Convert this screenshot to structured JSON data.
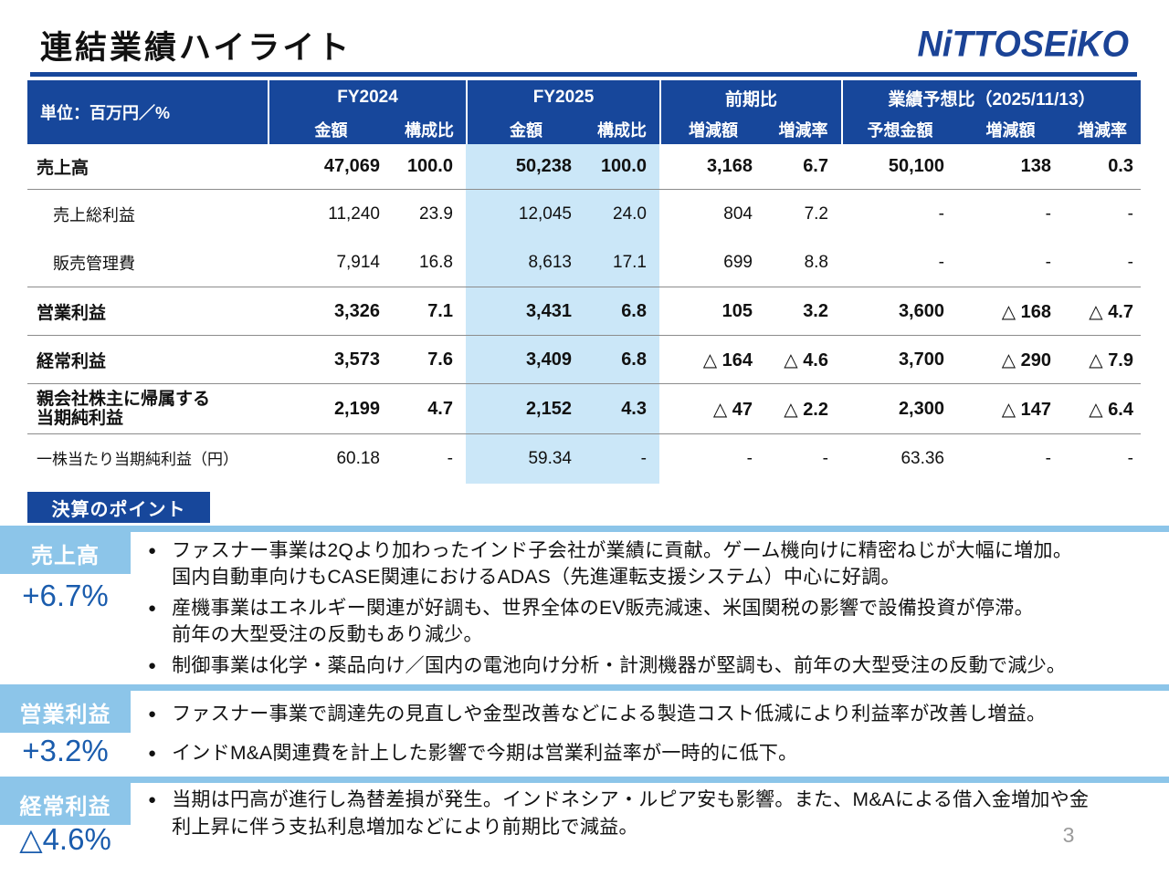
{
  "page": {
    "title": "連結業績ハイライト",
    "logo": "NiTTOSEiKO",
    "page_number": "3"
  },
  "colors": {
    "dark_blue": "#17479B",
    "logo_blue": "#1B4396",
    "light_blue": "#8CC5E9",
    "highlight_blue": "#CBE7F8",
    "percent_blue": "#1A5CAD"
  },
  "table": {
    "unit_label": "単位：百万円／%",
    "col_groups": [
      {
        "label": "FY2024",
        "subs": [
          "金額",
          "構成比"
        ]
      },
      {
        "label": "FY2025",
        "subs": [
          "金額",
          "構成比"
        ]
      },
      {
        "label": "前期比",
        "subs": [
          "増減額",
          "増減率"
        ]
      },
      {
        "label": "業績予想比（2025/11/13）",
        "subs": [
          "予想金額",
          "増減額",
          "増減率"
        ]
      }
    ],
    "rows": [
      {
        "label": "売上高",
        "values": [
          "47,069",
          "100.0",
          "50,238",
          "100.0",
          "3,168",
          "6.7",
          "50,100",
          "138",
          "0.3"
        ]
      },
      {
        "label": "売上総利益",
        "values": [
          "11,240",
          "23.9",
          "12,045",
          "24.0",
          "804",
          "7.2",
          "-",
          "-",
          "-"
        ]
      },
      {
        "label": "販売管理費",
        "values": [
          "7,914",
          "16.8",
          "8,613",
          "17.1",
          "699",
          "8.8",
          "-",
          "-",
          "-"
        ]
      },
      {
        "label": "営業利益",
        "values": [
          "3,326",
          "7.1",
          "3,431",
          "6.8",
          "105",
          "3.2",
          "3,600",
          "△ 168",
          "△ 4.7"
        ]
      },
      {
        "label": "経常利益",
        "values": [
          "3,573",
          "7.6",
          "3,409",
          "6.8",
          "△ 164",
          "△ 4.6",
          "3,700",
          "△ 290",
          "△ 7.9"
        ]
      },
      {
        "label": "親会社株主に帰属する\n当期純利益",
        "values": [
          "2,199",
          "4.7",
          "2,152",
          "4.3",
          "△ 47",
          "△ 2.2",
          "2,300",
          "△ 147",
          "△ 6.4"
        ]
      },
      {
        "label": "一株当たり当期純利益（円）",
        "values": [
          "60.18",
          "-",
          "59.34",
          "-",
          "-",
          "-",
          "63.36",
          "-",
          "-"
        ]
      }
    ]
  },
  "points": {
    "heading": "決算のポイント",
    "sections": [
      {
        "label": "売上高",
        "change": "+6.7%",
        "bullets": [
          "ファスナー事業は2Qより加わったインド子会社が業績に貢献。ゲーム機向けに精密ねじが大幅に増加。\n国内自動車向けもCASE関連におけるADAS（先進運転支援システム）中心に好調。",
          "産機事業はエネルギー関連が好調も、世界全体のEV販売減速、米国関税の影響で設備投資が停滞。\n前年の大型受注の反動もあり減少。",
          "制御事業は化学・薬品向け／国内の電池向け分析・計測機器が堅調も、前年の大型受注の反動で減少。"
        ]
      },
      {
        "label": "営業利益",
        "change": "+3.2%",
        "bullets": [
          "ファスナー事業で調達先の見直しや金型改善などによる製造コスト低減により利益率が改善し増益。",
          "インドM&A関連費を計上した影響で今期は営業利益率が一時的に低下。"
        ]
      },
      {
        "label": "経常利益",
        "change": "△4.6%",
        "bullets": [
          "当期は円高が進行し為替差損が発生。インドネシア・ルピア安も影響。また、M&Aによる借入金増加や金\n利上昇に伴う支払利息増加などにより前期比で減益。"
        ]
      }
    ]
  }
}
